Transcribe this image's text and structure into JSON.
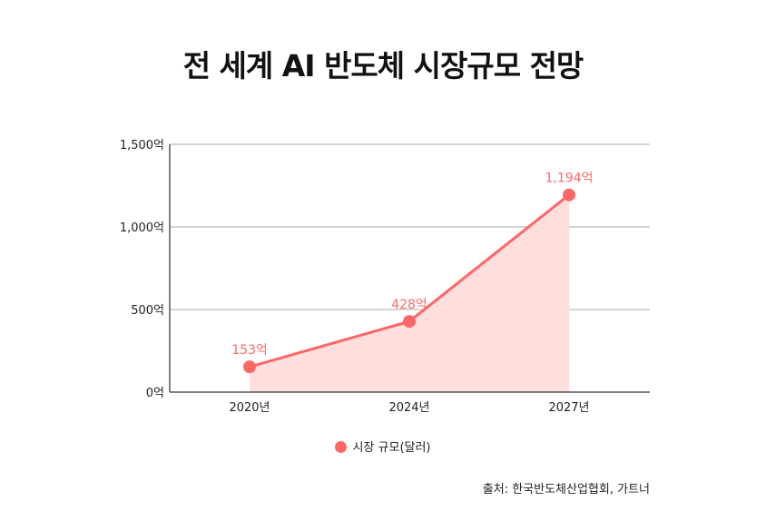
{
  "chart_data": {
    "type": "line",
    "title": "전 세계 AI 반도체 시장규모 전망",
    "categories": [
      "2020년",
      "2024년",
      "2027년"
    ],
    "series": [
      {
        "name": "시장 규모(달러)",
        "values": [
          153,
          428,
          1194
        ],
        "labels": [
          "153억",
          "428억",
          "1,194억"
        ],
        "color": "#ff6666",
        "fill": "#ffdede"
      }
    ],
    "yticks": [
      0,
      500,
      1000,
      1500
    ],
    "ytick_labels": [
      "0억",
      "500억",
      "1,000억",
      "1,500억"
    ],
    "ylim": [
      0,
      1500
    ],
    "grid": true,
    "legend": "bottom",
    "area_fill": true
  },
  "source": "출처: 한국반도체산업협회, 가트너"
}
